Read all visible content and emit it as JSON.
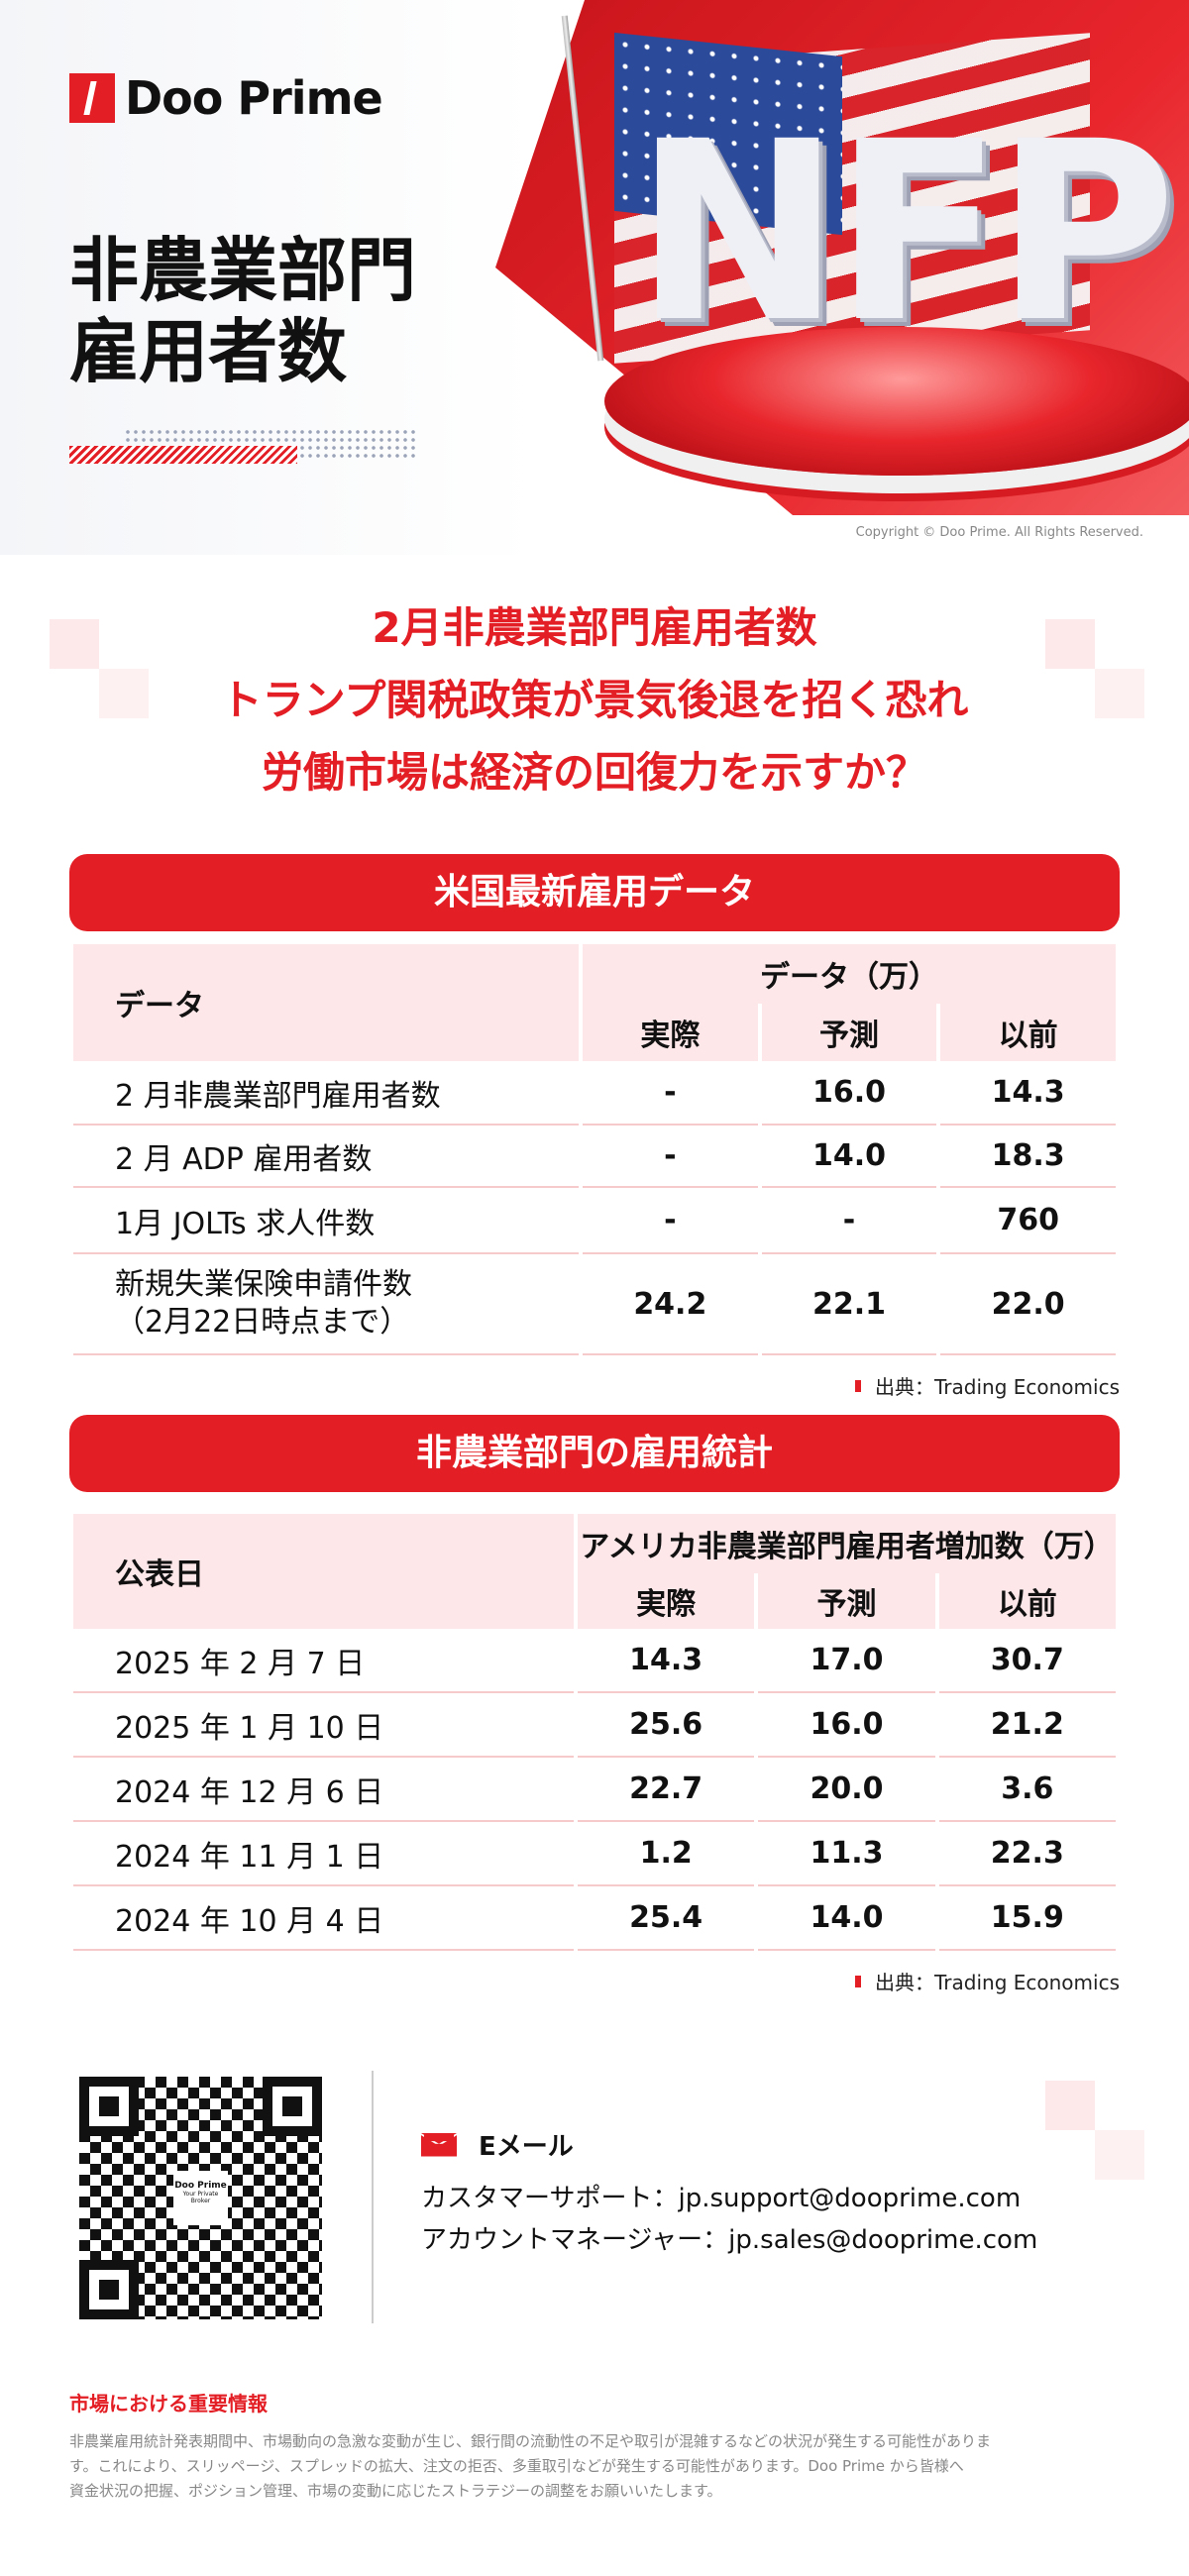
{
  "brand": {
    "name": "Doo Prime",
    "accent": "#e31e24"
  },
  "hero": {
    "title_line1": "非農業部門",
    "title_line2": "雇用者数",
    "image_text": "NFP",
    "copyright": "Copyright © Doo Prime. All Rights Reserved."
  },
  "headline": [
    "2月非農業部門雇用者数",
    "トランプ関税政策が景気後退を招く恐れ",
    "労働市場は経済の回復力を示すか？"
  ],
  "table1": {
    "title": "米国最新雇用データ",
    "col_label": "データ",
    "group": "データ（万）",
    "cols": [
      "実際",
      "予測",
      "以前"
    ],
    "rows": [
      {
        "label": "2 月非農業部門雇用者数",
        "sub": "",
        "v": [
          "-",
          "16.0",
          "14.3"
        ]
      },
      {
        "label": "2 月 ADP 雇用者数",
        "sub": "",
        "v": [
          "-",
          "14.0",
          "18.3"
        ]
      },
      {
        "label": "1月 JOLTs 求人件数",
        "sub": "",
        "v": [
          "-",
          "-",
          "760"
        ]
      },
      {
        "label": "新規失業保険申請件数",
        "sub": "（2月22日時点まで）",
        "v": [
          "24.2",
          "22.1",
          "22.0"
        ]
      }
    ],
    "source": "出典：Trading Economics"
  },
  "table2": {
    "title": "非農業部門の雇用統計",
    "col_label": "公表日",
    "group": "アメリカ非農業部門雇用者増加数（万）",
    "cols": [
      "実際",
      "予測",
      "以前"
    ],
    "rows": [
      {
        "label": "2025 年 2 月 7 日",
        "v": [
          "14.3",
          "17.0",
          "30.7"
        ]
      },
      {
        "label": "2025 年 1 月 10 日",
        "v": [
          "25.6",
          "16.0",
          "21.2"
        ]
      },
      {
        "label": "2024 年 12 月 6 日",
        "v": [
          "22.7",
          "20.0",
          "3.6"
        ]
      },
      {
        "label": "2024 年 11 月 1 日",
        "v": [
          "1.2",
          "11.3",
          "22.3"
        ]
      },
      {
        "label": "2024 年 10 月 4 日",
        "v": [
          "25.4",
          "14.0",
          "15.9"
        ]
      }
    ],
    "source": "出典：Trading Economics"
  },
  "contact": {
    "qr_brand": "Doo Prime",
    "qr_tagline": "Your Private Broker",
    "email_label": "Eメール",
    "support": "カスタマーサポート：jp.support@dooprime.com",
    "sales": "アカウントマネージャー：jp.sales@dooprime.com"
  },
  "disclaimer": {
    "title": "市場における重要情報",
    "lines": [
      "非農業雇用統計発表期間中、市場動向の急激な変動が生じ、銀行間の流動性の不足や取引が混雑するなどの状況が発生する可能性がありま",
      "す。これにより、スリッページ、スプレッドの拡大、注文の拒否、多重取引などが発生する可能性があります。Doo Prime から皆様へ",
      "資金状況の把握、ポジション管理、市場の変動に応じたストラテジーの調整をお願いいたします。"
    ]
  }
}
